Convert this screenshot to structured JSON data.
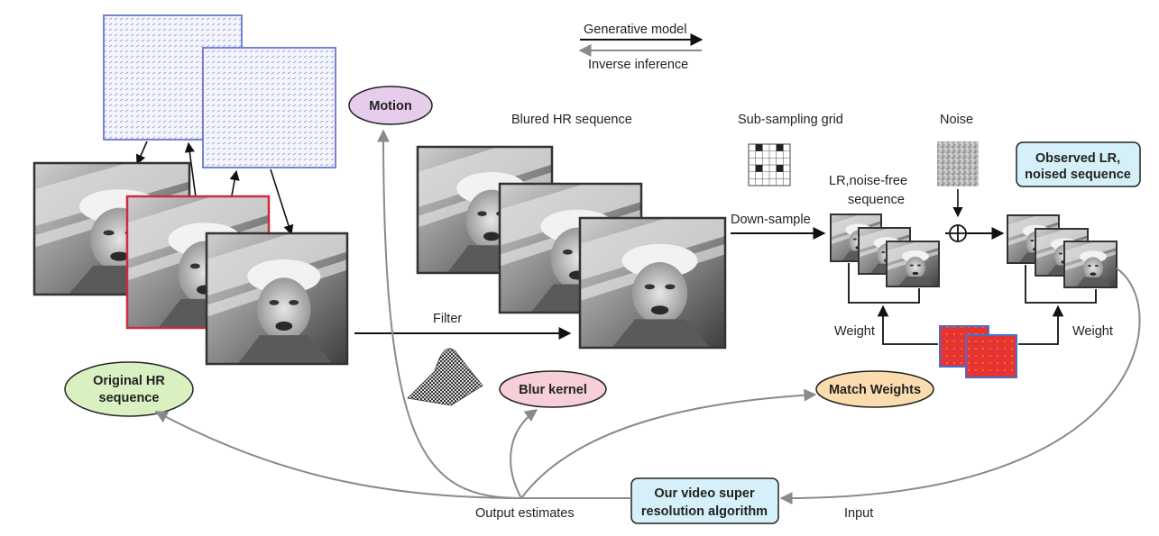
{
  "legend": {
    "generative": "Generative model",
    "inverse": "Inverse inference"
  },
  "labels": {
    "blurred_hr": "Blured HR sequence",
    "subsampling": "Sub-sampling grid",
    "noise": "Noise",
    "lr_noise_free_line1": "LR,noise-free",
    "lr_noise_free_line2": "sequence",
    "down_sample": "Down-sample",
    "filter": "Filter",
    "weight_left": "Weight",
    "weight_right": "Weight",
    "output_estimates": "Output estimates",
    "input": "Input"
  },
  "nodes": {
    "motion": "Motion",
    "original_hr_line1": "Original HR",
    "original_hr_line2": "sequence",
    "blur_kernel": "Blur kernel",
    "match_weights": "Match Weights",
    "observed_lr_line1": "Observed LR,",
    "observed_lr_line2": "noised sequence",
    "algorithm_line1": "Our video super",
    "algorithm_line2": "resolution algorithm"
  },
  "colors": {
    "motion": "#e6cdeb",
    "original_hr": "#d9f0c1",
    "blur_kernel": "#f7cfd8",
    "match_weights": "#fbdcae",
    "observed_lr": "#d6f0fa",
    "algorithm": "#d6f0fa",
    "inverse_arrow": "#8a8a8a",
    "highlight_frame": "#cc2b3b",
    "flow_field": "#6a79c9",
    "weight_map": "#e8342c"
  }
}
